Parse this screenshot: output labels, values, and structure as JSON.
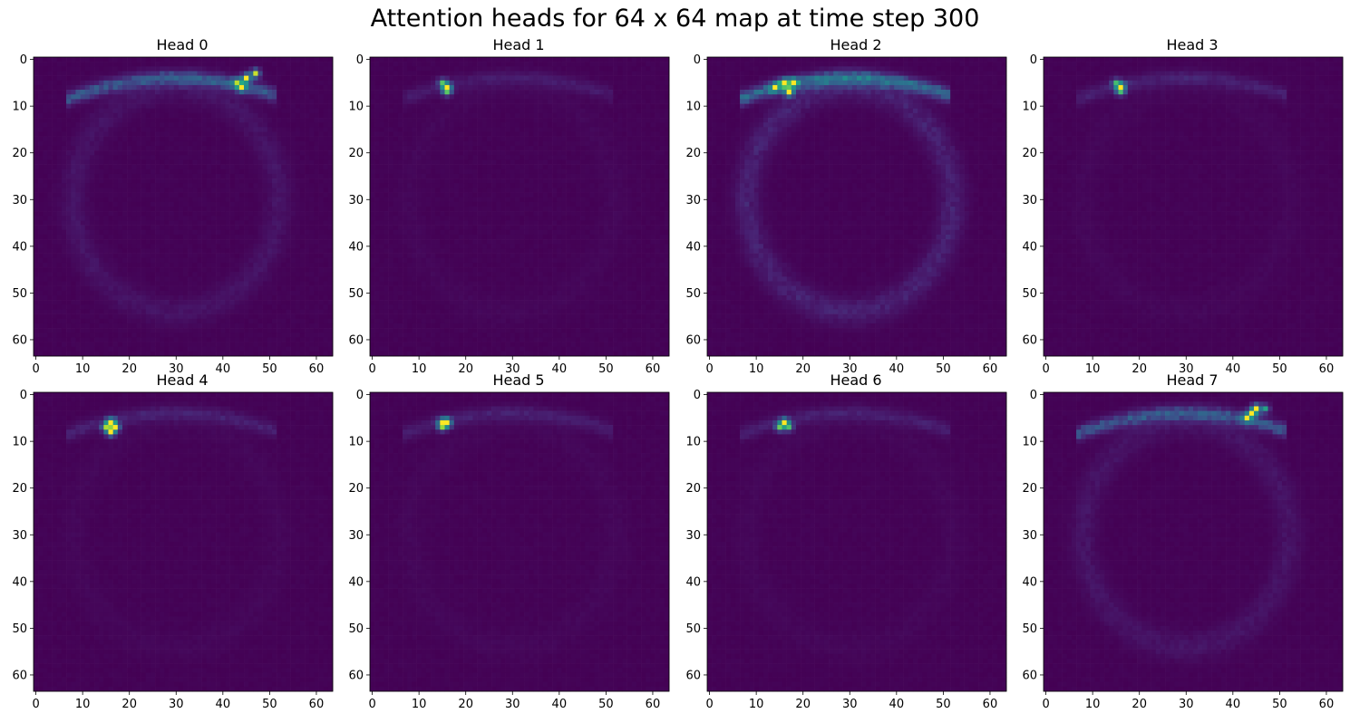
{
  "figure": {
    "title": "Attention heads for 64 x 64 map at time step 300"
  },
  "chart_data": {
    "type": "heatmap",
    "title": "Attention heads for 64 x 64 map at time step 300",
    "grid": false,
    "colormap": "viridis",
    "colors": {
      "low": "#440154",
      "mid": "#21918c",
      "high": "#fde725"
    },
    "xlim": [
      -0.5,
      63.5
    ],
    "ylim": [
      63.5,
      -0.5
    ],
    "xticks": [
      "0",
      "10",
      "20",
      "30",
      "40",
      "50",
      "60"
    ],
    "yticks": [
      "0",
      "10",
      "20",
      "30",
      "40",
      "50",
      "60"
    ],
    "tick_values": [
      0,
      10,
      20,
      30,
      40,
      50,
      60
    ],
    "grid_size": [
      64,
      64
    ],
    "value_range": [
      0,
      1
    ],
    "heads": [
      {
        "title": "Head 0",
        "peaks": [
          [
            45,
            4,
            1.0
          ],
          [
            47,
            3,
            0.9
          ],
          [
            44,
            6,
            0.75
          ],
          [
            43,
            5,
            0.6
          ]
        ],
        "arc": 0.32,
        "outline": 0.08
      },
      {
        "title": "Head 1",
        "peaks": [
          [
            16,
            6,
            1.0
          ],
          [
            15,
            5,
            0.55
          ],
          [
            16,
            7,
            0.45
          ]
        ],
        "arc": 0.1,
        "outline": 0.02
      },
      {
        "title": "Head 2",
        "peaks": [
          [
            16,
            5,
            0.95
          ],
          [
            17,
            7,
            0.9
          ],
          [
            14,
            6,
            0.8
          ],
          [
            18,
            5,
            0.75
          ]
        ],
        "arc": 0.42,
        "outline": 0.14
      },
      {
        "title": "Head 3",
        "peaks": [
          [
            16,
            6,
            1.0
          ],
          [
            15,
            5,
            0.5
          ],
          [
            16,
            7,
            0.4
          ]
        ],
        "arc": 0.13,
        "outline": 0.02
      },
      {
        "title": "Head 4",
        "peaks": [
          [
            16,
            6,
            1.0
          ],
          [
            16,
            8,
            0.9
          ],
          [
            17,
            7,
            0.8
          ],
          [
            15,
            7,
            0.6
          ]
        ],
        "arc": 0.13,
        "outline": 0.02
      },
      {
        "title": "Head 5",
        "peaks": [
          [
            16,
            6,
            0.95
          ],
          [
            15,
            6,
            0.7
          ],
          [
            15,
            7,
            0.5
          ]
        ],
        "arc": 0.12,
        "outline": 0.02
      },
      {
        "title": "Head 6",
        "peaks": [
          [
            16,
            6,
            0.95
          ],
          [
            15,
            7,
            0.6
          ],
          [
            17,
            7,
            0.55
          ]
        ],
        "arc": 0.12,
        "outline": 0.02
      },
      {
        "title": "Head 7",
        "peaks": [
          [
            45,
            3,
            1.0
          ],
          [
            44,
            4,
            0.75
          ],
          [
            43,
            5,
            0.6
          ],
          [
            47,
            3,
            0.55
          ]
        ],
        "arc": 0.32,
        "outline": 0.08
      }
    ]
  }
}
